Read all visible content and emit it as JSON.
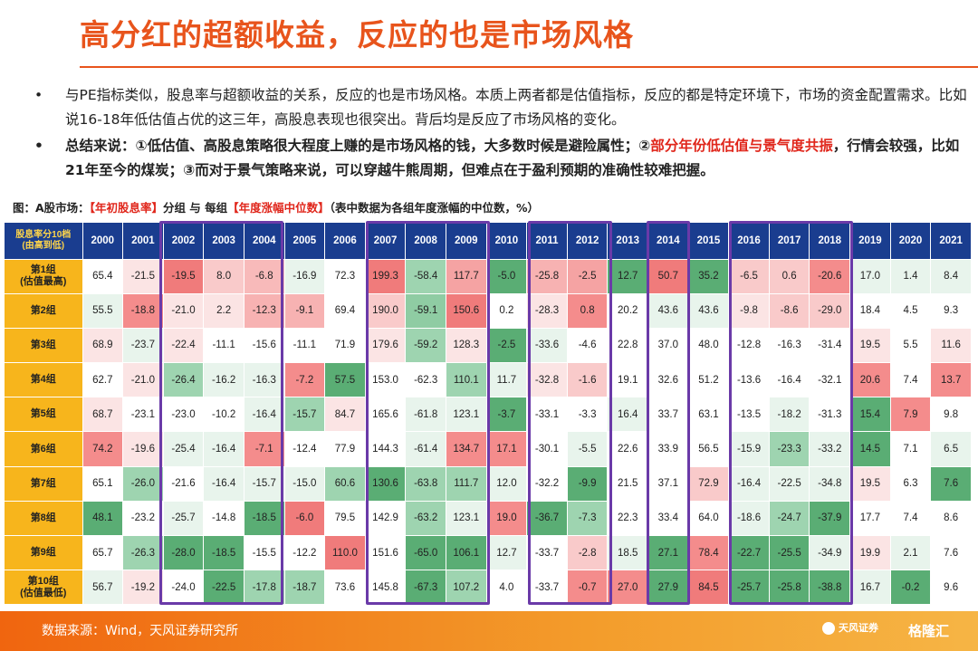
{
  "title": "高分红的超额收益，反应的也是市场风格",
  "bullets": [
    {
      "text": "与PE指标类似，股息率与超额收益的关系，反应的也是市场风格。本质上两者都是估值指标，反应的都是特定环境下，市场的资金配置需求。比如说16-18年低估值占优的这三年，高股息表现也很突出。背后均是反应了市场风格的变化。"
    },
    {
      "pre": "总结来说：①低估值、高股息策略很大程度上赚的是市场风格的钱，大多数时候是避险属性；②",
      "highlight": "部分年份低估值与景气度共振",
      "post": "，行情会较强，比如21年至今的煤炭；③而对于景气策略来说，可以穿越牛熊周期，但难点在于盈利预期的准确性较难把握。"
    }
  ],
  "caption": {
    "pre": "图：A股市场：",
    "red1": "【年初股息率】",
    "mid": "分组 与 每组",
    "red2": "【年度涨幅中位数】",
    "post": "（表中数据为各组年度涨幅的中位数，%）"
  },
  "table": {
    "corner_line1": "股息率分10档",
    "corner_line2": "(由高到低)",
    "years": [
      "2000",
      "2001",
      "2002",
      "2003",
      "2004",
      "2005",
      "2006",
      "2007",
      "2008",
      "2009",
      "2010",
      "2011",
      "2012",
      "2013",
      "2014",
      "2015",
      "2016",
      "2017",
      "2018",
      "2019",
      "2020",
      "2021"
    ],
    "rows": [
      {
        "label1": "第1组",
        "label2": "(估值最高)",
        "values": [
          "65.4",
          "-21.5",
          "-19.5",
          "8.0",
          "-6.8",
          "-16.9",
          "72.3",
          "199.3",
          "-58.4",
          "117.7",
          "-5.0",
          "-25.8",
          "-2.5",
          "12.7",
          "50.7",
          "35.2",
          "-6.5",
          "0.6",
          "-20.6",
          "17.0",
          "1.4",
          "8.4"
        ],
        "colors": [
          "#ffffff",
          "#fbe4e4",
          "#f07b7b",
          "#f9caca",
          "#f8baba",
          "#e8f4ec",
          "#ffffff",
          "#f07b7b",
          "#9ed4b0",
          "#f5a3a3",
          "#5aad74",
          "#f7b2b2",
          "#f5a3a3",
          "#5aad74",
          "#f07b7b",
          "#5aad74",
          "#f9caca",
          "#f9caca",
          "#f48c8c",
          "#e8f4ec",
          "#e8f4ec",
          "#e8f4ec"
        ]
      },
      {
        "label1": "第2组",
        "label2": "",
        "values": [
          "55.5",
          "-18.8",
          "-21.0",
          "2.2",
          "-12.3",
          "-9.1",
          "69.4",
          "190.0",
          "-59.1",
          "150.6",
          "0.2",
          "-28.3",
          "0.8",
          "20.2",
          "43.6",
          "43.6",
          "-9.8",
          "-8.6",
          "-29.0",
          "18.4",
          "4.5",
          "9.3"
        ],
        "colors": [
          "#e8f4ec",
          "#f48c8c",
          "#fbe4e4",
          "#fbe4e4",
          "#f7b2b2",
          "#f7b2b2",
          "#ffffff",
          "#f9caca",
          "#8fcca3",
          "#f07b7b",
          "#ffffff",
          "#fbe4e4",
          "#f48c8c",
          "#ffffff",
          "#e8f4ec",
          "#e8f4ec",
          "#fbe4e4",
          "#f9caca",
          "#f9caca",
          "#ffffff",
          "#ffffff",
          "#ffffff"
        ]
      },
      {
        "label1": "第3组",
        "label2": "",
        "values": [
          "68.9",
          "-23.7",
          "-22.4",
          "-11.1",
          "-15.6",
          "-11.1",
          "71.9",
          "179.6",
          "-59.2",
          "128.3",
          "-2.5",
          "-33.6",
          "-4.6",
          "22.8",
          "37.0",
          "48.0",
          "-12.8",
          "-16.3",
          "-31.4",
          "19.5",
          "5.5",
          "11.6"
        ],
        "colors": [
          "#fbe4e4",
          "#e8f4ec",
          "#fbe4e4",
          "#ffffff",
          "#ffffff",
          "#ffffff",
          "#ffffff",
          "#fbe4e4",
          "#9ed4b0",
          "#fbe4e4",
          "#5aad74",
          "#e8f4ec",
          "#ffffff",
          "#ffffff",
          "#ffffff",
          "#ffffff",
          "#ffffff",
          "#ffffff",
          "#ffffff",
          "#fbe4e4",
          "#ffffff",
          "#fbe4e4"
        ]
      },
      {
        "label1": "第4组",
        "label2": "",
        "values": [
          "62.7",
          "-21.0",
          "-26.4",
          "-16.2",
          "-16.3",
          "-7.2",
          "57.5",
          "153.0",
          "-62.3",
          "110.1",
          "11.7",
          "-32.8",
          "-1.6",
          "19.1",
          "32.6",
          "51.2",
          "-13.6",
          "-16.4",
          "-32.1",
          "20.6",
          "7.4",
          "13.7"
        ],
        "colors": [
          "#ffffff",
          "#fbe4e4",
          "#9ed4b0",
          "#e8f4ec",
          "#e8f4ec",
          "#f48c8c",
          "#5aad74",
          "#ffffff",
          "#ffffff",
          "#9ed4b0",
          "#e8f4ec",
          "#fbe4e4",
          "#f9caca",
          "#ffffff",
          "#ffffff",
          "#ffffff",
          "#ffffff",
          "#ffffff",
          "#ffffff",
          "#f48c8c",
          "#ffffff",
          "#f48c8c"
        ]
      },
      {
        "label1": "第5组",
        "label2": "",
        "values": [
          "68.7",
          "-23.1",
          "-23.0",
          "-10.2",
          "-16.4",
          "-15.7",
          "84.7",
          "165.6",
          "-61.8",
          "123.1",
          "-3.7",
          "-33.1",
          "-3.3",
          "16.4",
          "33.7",
          "63.1",
          "-13.5",
          "-18.2",
          "-31.3",
          "15.4",
          "7.9",
          "9.8"
        ],
        "colors": [
          "#fbe4e4",
          "#ffffff",
          "#ffffff",
          "#ffffff",
          "#e8f4ec",
          "#9ed4b0",
          "#fbe4e4",
          "#ffffff",
          "#e8f4ec",
          "#e8f4ec",
          "#5aad74",
          "#ffffff",
          "#ffffff",
          "#e8f4ec",
          "#ffffff",
          "#ffffff",
          "#ffffff",
          "#e8f4ec",
          "#ffffff",
          "#5aad74",
          "#f48c8c",
          "#ffffff"
        ]
      },
      {
        "label1": "第6组",
        "label2": "",
        "values": [
          "74.2",
          "-19.6",
          "-25.4",
          "-16.4",
          "-7.1",
          "-12.4",
          "77.9",
          "144.3",
          "-61.4",
          "134.7",
          "17.1",
          "-30.1",
          "-5.5",
          "22.6",
          "33.9",
          "56.5",
          "-15.9",
          "-23.3",
          "-33.2",
          "14.5",
          "7.1",
          "6.5"
        ],
        "colors": [
          "#f48c8c",
          "#fbe4e4",
          "#e8f4ec",
          "#e8f4ec",
          "#f48c8c",
          "#ffffff",
          "#ffffff",
          "#ffffff",
          "#e8f4ec",
          "#f48c8c",
          "#f48c8c",
          "#ffffff",
          "#e8f4ec",
          "#ffffff",
          "#ffffff",
          "#ffffff",
          "#e8f4ec",
          "#9ed4b0",
          "#e8f4ec",
          "#5aad74",
          "#ffffff",
          "#e8f4ec"
        ]
      },
      {
        "label1": "第7组",
        "label2": "",
        "values": [
          "65.1",
          "-26.0",
          "-21.6",
          "-16.4",
          "-15.7",
          "-15.0",
          "60.6",
          "130.6",
          "-63.8",
          "111.7",
          "12.0",
          "-32.2",
          "-9.9",
          "21.5",
          "37.1",
          "72.9",
          "-16.4",
          "-22.5",
          "-34.8",
          "19.5",
          "6.3",
          "7.6"
        ],
        "colors": [
          "#ffffff",
          "#9ed4b0",
          "#ffffff",
          "#e8f4ec",
          "#e8f4ec",
          "#e8f4ec",
          "#9ed4b0",
          "#5aad74",
          "#9ed4b0",
          "#9ed4b0",
          "#e8f4ec",
          "#ffffff",
          "#5aad74",
          "#ffffff",
          "#ffffff",
          "#f9caca",
          "#e8f4ec",
          "#e8f4ec",
          "#e8f4ec",
          "#fbe4e4",
          "#ffffff",
          "#5aad74"
        ]
      },
      {
        "label1": "第8组",
        "label2": "",
        "values": [
          "48.1",
          "-23.2",
          "-25.7",
          "-14.8",
          "-18.5",
          "-6.0",
          "79.5",
          "142.9",
          "-63.2",
          "123.1",
          "19.0",
          "-36.7",
          "-7.3",
          "22.3",
          "33.4",
          "64.0",
          "-18.6",
          "-24.7",
          "-37.9",
          "17.7",
          "7.4",
          "8.6"
        ],
        "colors": [
          "#5aad74",
          "#ffffff",
          "#e8f4ec",
          "#ffffff",
          "#5aad74",
          "#f07b7b",
          "#ffffff",
          "#ffffff",
          "#9ed4b0",
          "#e8f4ec",
          "#f48c8c",
          "#5aad74",
          "#9ed4b0",
          "#ffffff",
          "#ffffff",
          "#ffffff",
          "#e8f4ec",
          "#9ed4b0",
          "#5aad74",
          "#ffffff",
          "#ffffff",
          "#ffffff"
        ]
      },
      {
        "label1": "第9组",
        "label2": "",
        "values": [
          "65.7",
          "-26.3",
          "-28.0",
          "-18.5",
          "-15.5",
          "-12.2",
          "110.0",
          "151.6",
          "-65.0",
          "106.1",
          "12.7",
          "-33.7",
          "-2.8",
          "18.5",
          "27.1",
          "78.4",
          "-22.7",
          "-25.5",
          "-34.9",
          "19.9",
          "2.1",
          "7.6"
        ],
        "colors": [
          "#ffffff",
          "#9ed4b0",
          "#5aad74",
          "#5aad74",
          "#ffffff",
          "#ffffff",
          "#f07b7b",
          "#ffffff",
          "#5aad74",
          "#5aad74",
          "#e8f4ec",
          "#ffffff",
          "#f9caca",
          "#e8f4ec",
          "#5aad74",
          "#f48c8c",
          "#5aad74",
          "#5aad74",
          "#e8f4ec",
          "#fbe4e4",
          "#e8f4ec",
          "#ffffff"
        ]
      },
      {
        "label1": "第10组",
        "label2": "(估值最低)",
        "values": [
          "56.7",
          "-19.2",
          "-24.0",
          "-22.5",
          "-17.8",
          "-18.7",
          "73.6",
          "145.8",
          "-67.3",
          "107.2",
          "4.0",
          "-33.7",
          "-0.7",
          "27.0",
          "27.9",
          "84.5",
          "-25.7",
          "-25.8",
          "-38.8",
          "16.7",
          "-0.2",
          "9.6"
        ],
        "colors": [
          "#e8f4ec",
          "#fbe4e4",
          "#ffffff",
          "#5aad74",
          "#9ed4b0",
          "#9ed4b0",
          "#ffffff",
          "#ffffff",
          "#5aad74",
          "#9ed4b0",
          "#ffffff",
          "#ffffff",
          "#f48c8c",
          "#f48c8c",
          "#5aad74",
          "#f07b7b",
          "#5aad74",
          "#5aad74",
          "#5aad74",
          "#e8f4ec",
          "#5aad74",
          "#ffffff"
        ]
      }
    ]
  },
  "footer": {
    "source": "数据来源：Wind，天风证券研究所",
    "logo": "天风证券",
    "watermark": "格隆汇"
  }
}
